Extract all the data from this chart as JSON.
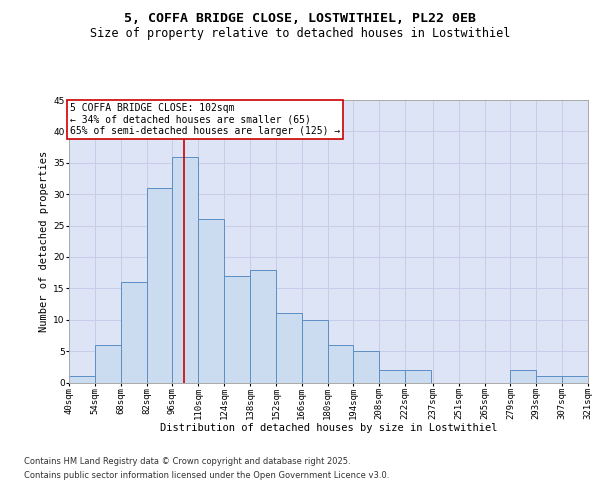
{
  "title_line1": "5, COFFA BRIDGE CLOSE, LOSTWITHIEL, PL22 0EB",
  "title_line2": "Size of property relative to detached houses in Lostwithiel",
  "xlabel": "Distribution of detached houses by size in Lostwithiel",
  "ylabel": "Number of detached properties",
  "bins": [
    40,
    54,
    68,
    82,
    96,
    110,
    124,
    138,
    152,
    166,
    180,
    194,
    208,
    222,
    237,
    251,
    265,
    279,
    293,
    307,
    321
  ],
  "bin_labels": [
    "40sqm",
    "54sqm",
    "68sqm",
    "82sqm",
    "96sqm",
    "110sqm",
    "124sqm",
    "138sqm",
    "152sqm",
    "166sqm",
    "180sqm",
    "194sqm",
    "208sqm",
    "222sqm",
    "237sqm",
    "251sqm",
    "265sqm",
    "279sqm",
    "293sqm",
    "307sqm",
    "321sqm"
  ],
  "values": [
    1,
    6,
    16,
    31,
    36,
    26,
    17,
    18,
    11,
    10,
    6,
    5,
    2,
    2,
    0,
    0,
    0,
    2,
    1,
    1
  ],
  "bar_color": "#ccdcf0",
  "bar_edge_color": "#5b8ec4",
  "grid_color": "#c8cce8",
  "background_color": "#dde4f5",
  "annotation_box_color": "#ffffff",
  "annotation_border_color": "#cc0000",
  "vline_color": "#cc0000",
  "vline_x": 102,
  "annotation_text_line1": "5 COFFA BRIDGE CLOSE: 102sqm",
  "annotation_text_line2": "← 34% of detached houses are smaller (65)",
  "annotation_text_line3": "65% of semi-detached houses are larger (125) →",
  "ylim": [
    0,
    45
  ],
  "yticks": [
    0,
    5,
    10,
    15,
    20,
    25,
    30,
    35,
    40,
    45
  ],
  "footnote_line1": "Contains HM Land Registry data © Crown copyright and database right 2025.",
  "footnote_line2": "Contains public sector information licensed under the Open Government Licence v3.0.",
  "title_fontsize": 9.5,
  "subtitle_fontsize": 8.5,
  "axis_label_fontsize": 7.5,
  "tick_fontsize": 6.5,
  "annotation_fontsize": 7,
  "footnote_fontsize": 6
}
